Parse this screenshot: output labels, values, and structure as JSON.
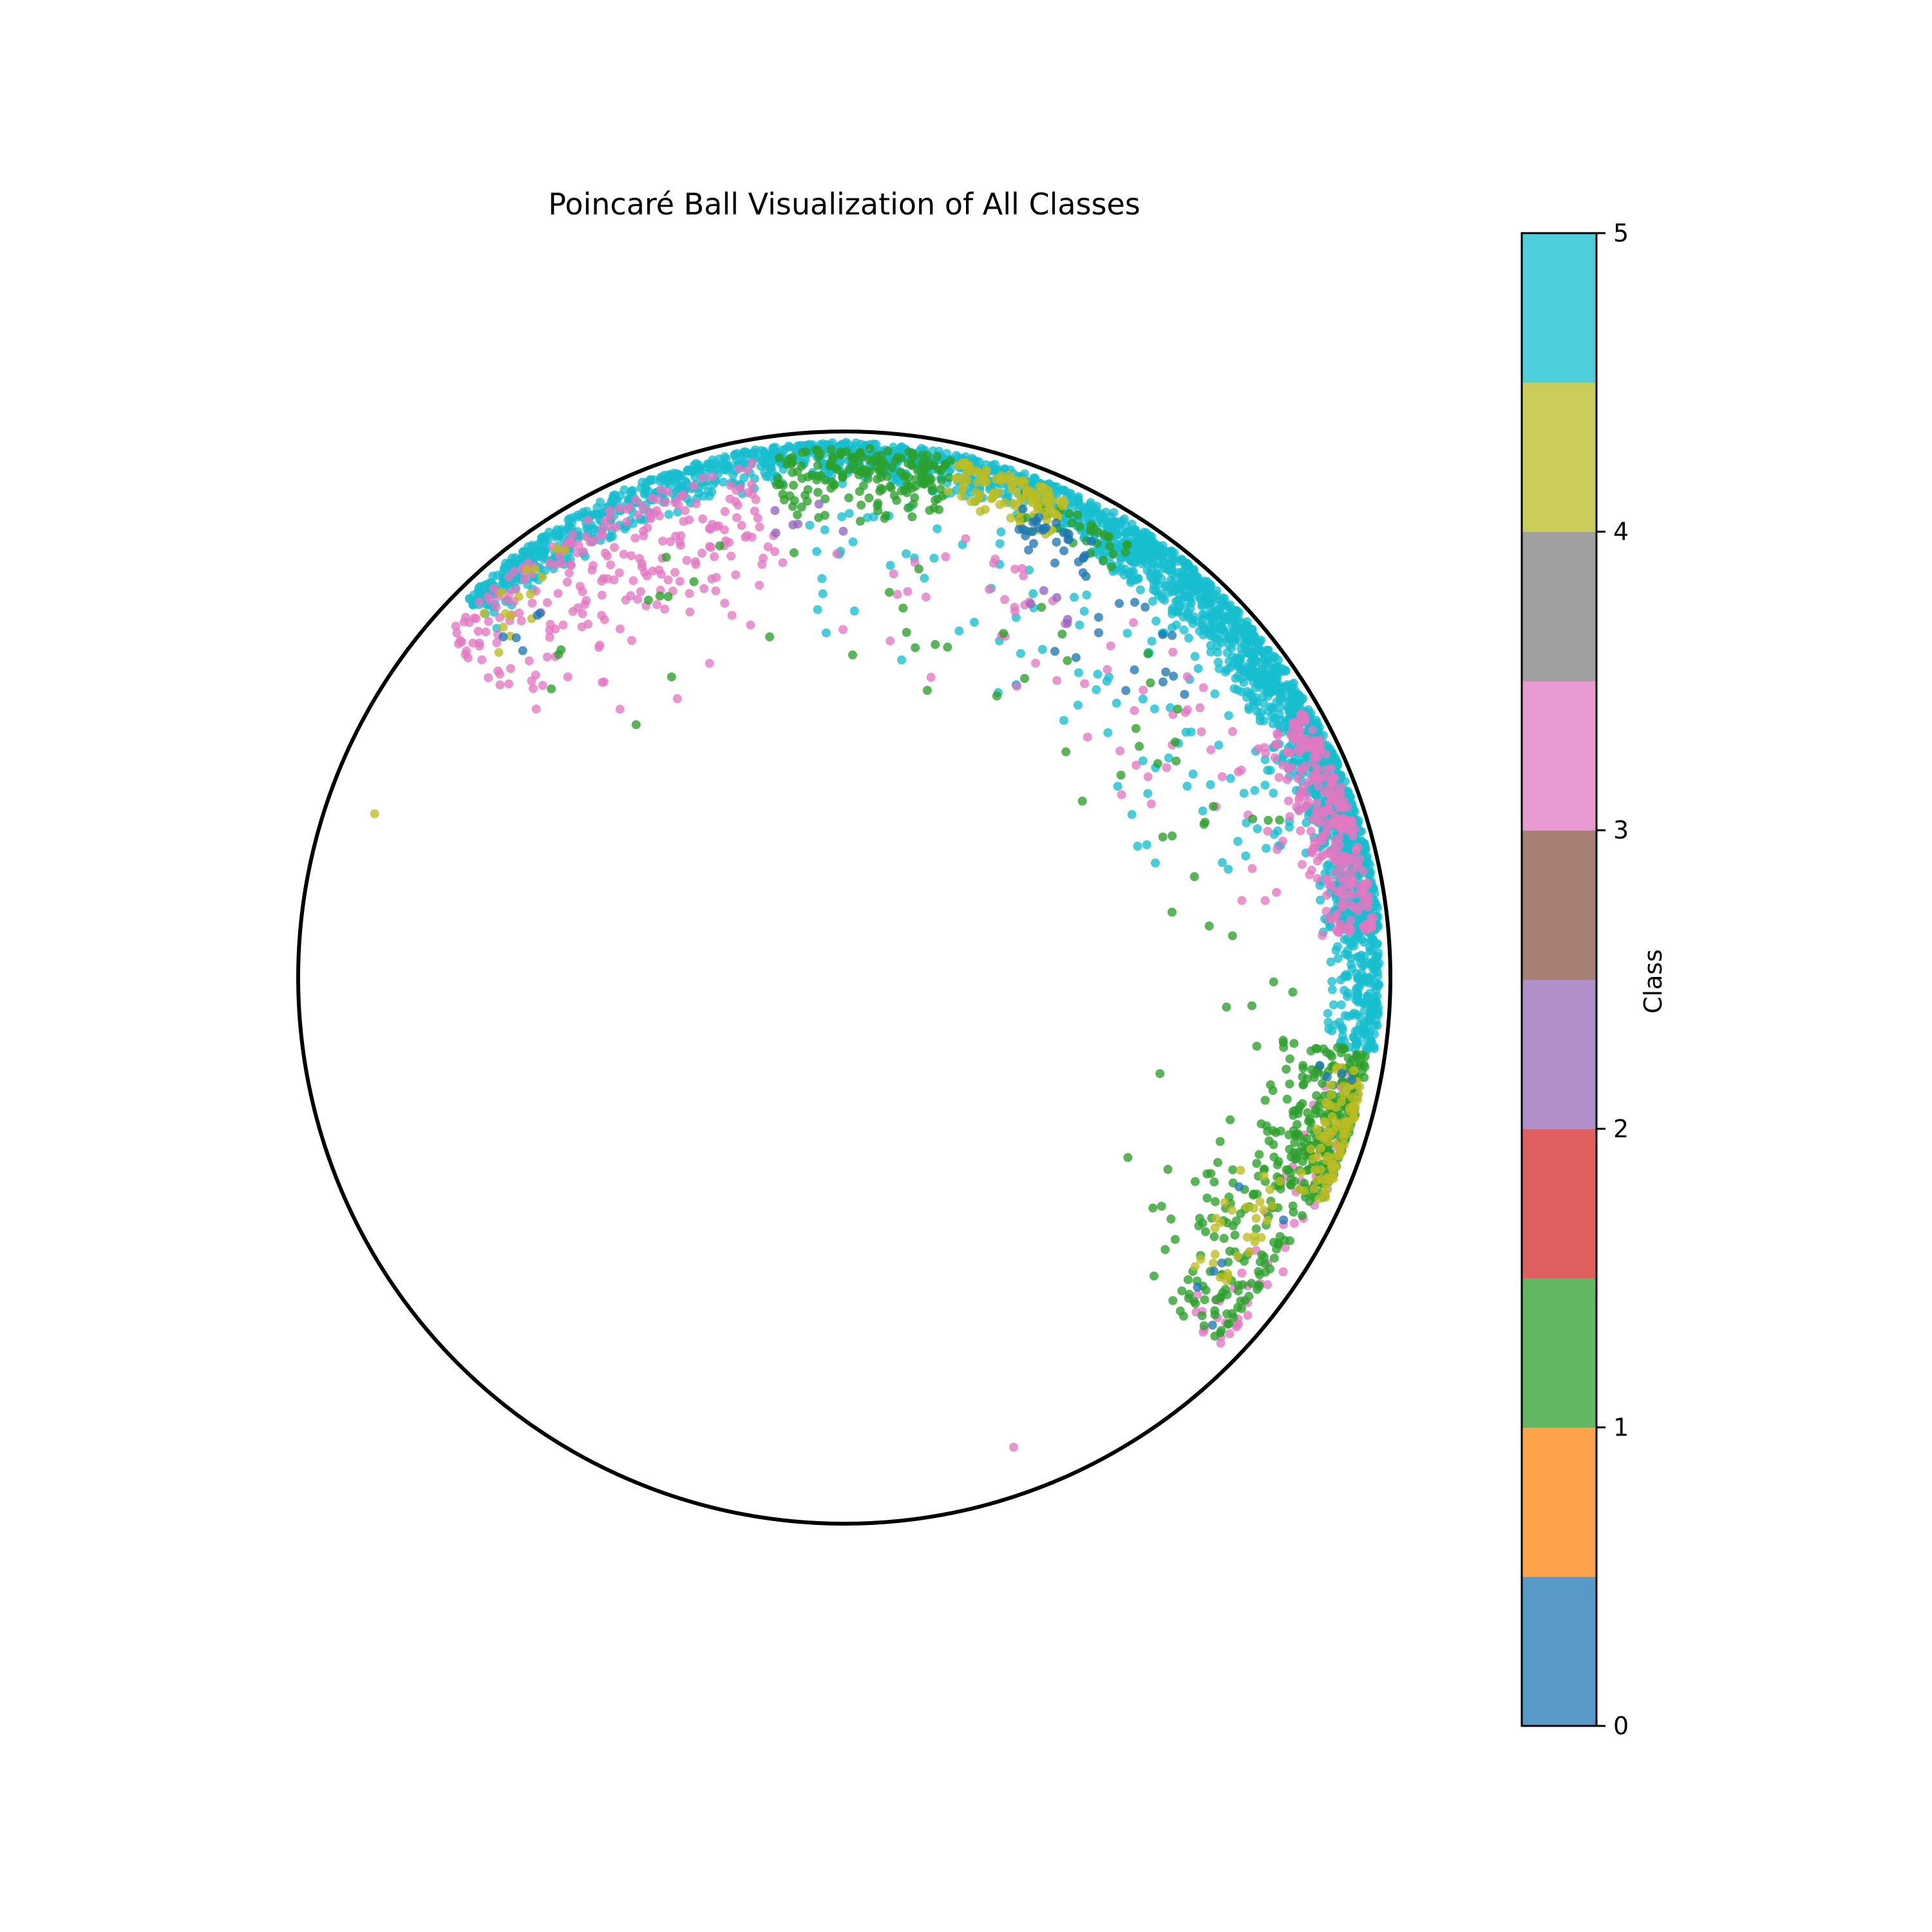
{
  "chart_data": {
    "type": "scatter",
    "title": "Poincaré Ball Visualization of All Classes",
    "xlim": [
      -1,
      1
    ],
    "ylim": [
      -1,
      1
    ],
    "boundary": "unit-circle",
    "grid": false,
    "axes_visible": false,
    "colorbar": {
      "label": "Class",
      "range": [
        0,
        5
      ],
      "ticks": [
        "0",
        "1",
        "2",
        "3",
        "4",
        "5"
      ],
      "num_levels": 10,
      "level_colors": [
        "#5799c7",
        "#ffa34a",
        "#62b862",
        "#df5e5f",
        "#b08fca",
        "#a77f74",
        "#e99ad1",
        "#a0a0a0",
        "#cbcd5a",
        "#4fcfdc"
      ]
    },
    "class_colors": {
      "0": "#1f77b4",
      "1": "#2ca02c",
      "2": "#9467bd",
      "3": "#e377c2",
      "4": "#bcbd22",
      "5": "#17becf"
    },
    "series": [
      {
        "class": 5,
        "clusters": [
          {
            "theta_range": [
              60,
              135
            ],
            "r_range": [
              0.9,
              0.98
            ],
            "count": 900
          },
          {
            "theta_range": [
              5,
              60
            ],
            "r_range": [
              0.88,
              0.985
            ],
            "count": 1300
          },
          {
            "theta_range": [
              -8,
              8
            ],
            "r_range": [
              0.88,
              0.98
            ],
            "count": 220
          },
          {
            "theta_range": [
              15,
              95
            ],
            "r_range": [
              0.55,
              0.88
            ],
            "count": 110
          }
        ]
      },
      {
        "class": 3,
        "clusters": [
          {
            "theta_range": [
              100,
              140
            ],
            "r_range": [
              0.72,
              0.96
            ],
            "count": 230
          },
          {
            "theta_range": [
              5,
              30
            ],
            "r_range": [
              0.86,
              0.975
            ],
            "count": 260
          },
          {
            "theta_range": [
              -45,
              -10
            ],
            "r_range": [
              0.85,
              0.97
            ],
            "count": 60
          },
          {
            "theta_range": [
              10,
              130
            ],
            "r_range": [
              0.5,
              0.85
            ],
            "count": 90
          }
        ]
      },
      {
        "class": 1,
        "clusters": [
          {
            "theta_range": [
              78,
              98
            ],
            "r_range": [
              0.84,
              0.97
            ],
            "count": 180
          },
          {
            "theta_range": [
              -25,
              -8
            ],
            "r_range": [
              0.8,
              0.97
            ],
            "count": 260
          },
          {
            "theta_range": [
              -45,
              -25
            ],
            "r_range": [
              0.75,
              0.95
            ],
            "count": 120
          },
          {
            "theta_range": [
              55,
              70
            ],
            "r_range": [
              0.88,
              0.95
            ],
            "count": 40
          },
          {
            "theta_range": [
              -40,
              140
            ],
            "r_range": [
              0.45,
              0.85
            ],
            "count": 70
          }
        ]
      },
      {
        "class": 4,
        "clusters": [
          {
            "theta_range": [
              65,
              78
            ],
            "r_range": [
              0.88,
              0.97
            ],
            "count": 110
          },
          {
            "theta_range": [
              -25,
              -10
            ],
            "r_range": [
              0.9,
              0.97
            ],
            "count": 90
          },
          {
            "theta_range": [
              -40,
              -25
            ],
            "r_range": [
              0.78,
              0.9
            ],
            "count": 30
          },
          {
            "theta_range": [
              120,
              140
            ],
            "r_range": [
              0.85,
              0.96
            ],
            "count": 15
          }
        ]
      },
      {
        "class": 0,
        "clusters": [
          {
            "theta_range": [
              60,
              70
            ],
            "r_range": [
              0.86,
              0.92
            ],
            "count": 25
          },
          {
            "theta_range": [
              35,
              70
            ],
            "r_range": [
              0.6,
              0.88
            ],
            "count": 20
          },
          {
            "theta_range": [
              -45,
              -10
            ],
            "r_range": [
              0.8,
              0.95
            ],
            "count": 10
          },
          {
            "theta_range": [
              125,
              140
            ],
            "r_range": [
              0.8,
              0.9
            ],
            "count": 5
          }
        ]
      },
      {
        "class": 2,
        "clusters": [
          {
            "theta_range": [
              85,
              100
            ],
            "r_range": [
              0.75,
              0.87
            ],
            "count": 6
          },
          {
            "theta_range": [
              55,
              65
            ],
            "r_range": [
              0.72,
              0.8
            ],
            "count": 5
          }
        ]
      }
    ],
    "outliers": [
      {
        "class": 4,
        "x": -0.86,
        "y": 0.3
      },
      {
        "class": 3,
        "x": 0.31,
        "y": -0.86
      }
    ]
  }
}
